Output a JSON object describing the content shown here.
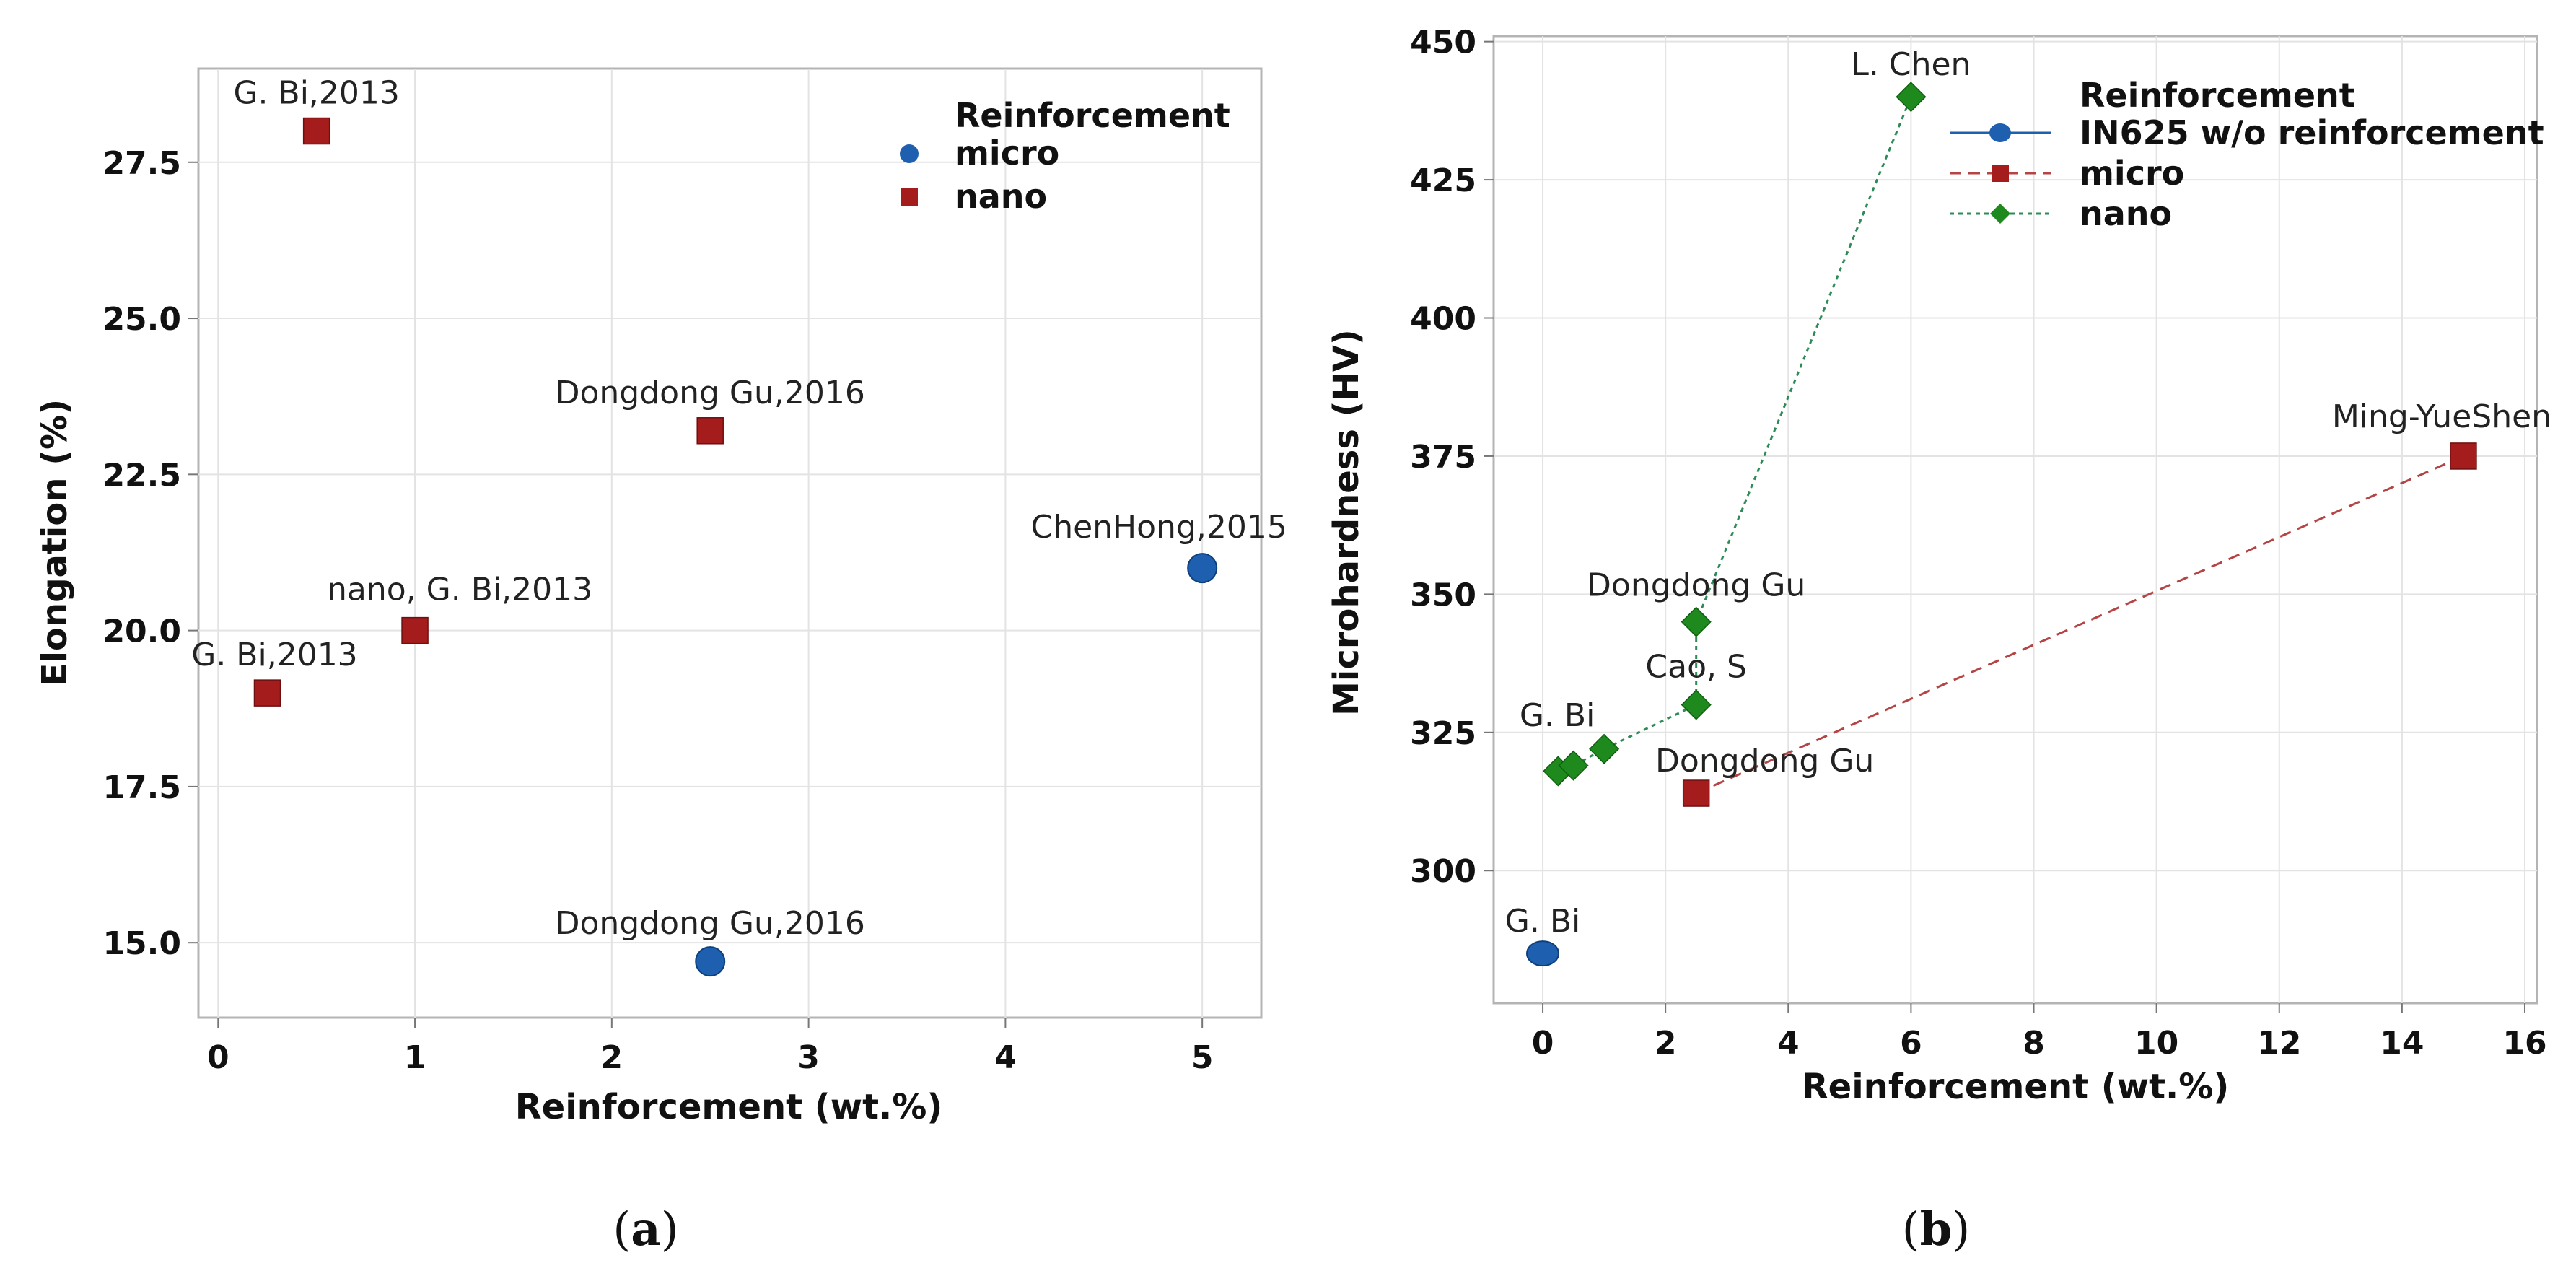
{
  "chart_data": [
    {
      "type": "scatter",
      "caption": "a",
      "xlabel": "Reinforcement (wt.%)",
      "ylabel": "Elongation (%)",
      "xlim": [
        -0.1,
        5.3
      ],
      "ylim": [
        13.8,
        29.0
      ],
      "xticks": [
        0,
        1,
        2,
        3,
        4,
        5
      ],
      "yticks": [
        15.0,
        17.5,
        20.0,
        22.5,
        25.0,
        27.5
      ],
      "ytick_labels": [
        "15.0",
        "17.5",
        "20.0",
        "22.5",
        "25.0",
        "27.5"
      ],
      "legend": {
        "title": "Reinforcement",
        "position": "top-right"
      },
      "series": [
        {
          "name": "micro",
          "marker": "circle",
          "color": "#1f5fb0",
          "points": [
            {
              "x": 2.5,
              "y": 14.7,
              "label": "Dongdong Gu,2016"
            },
            {
              "x": 5.0,
              "y": 21.0,
              "label": "ChenHong,2015"
            }
          ]
        },
        {
          "name": "nano",
          "marker": "square",
          "color": "#a51c1c",
          "points": [
            {
              "x": 0.5,
              "y": 28.0,
              "label": "G. Bi,2013"
            },
            {
              "x": 2.5,
              "y": 23.2,
              "label": "Dongdong Gu,2016"
            },
            {
              "x": 1.0,
              "y": 20.0,
              "label": "nano, G. Bi,2013"
            },
            {
              "x": 0.25,
              "y": 19.0,
              "label": "G. Bi,2013"
            }
          ]
        }
      ]
    },
    {
      "type": "line",
      "caption": "b",
      "xlabel": "Reinforcement (wt.%)",
      "ylabel": "Microhardness (HV)",
      "xlim": [
        -0.8,
        16.2
      ],
      "ylim": [
        276,
        451
      ],
      "xticks": [
        0,
        2,
        4,
        6,
        8,
        10,
        12,
        14,
        16
      ],
      "yticks": [
        300,
        325,
        350,
        375,
        400,
        425,
        450
      ],
      "ytick_labels": [
        "300",
        "325",
        "350",
        "375",
        "400",
        "425",
        "450"
      ],
      "legend": {
        "title": "Reinforcement",
        "position": "top-right"
      },
      "series": [
        {
          "name": "IN625 w/o reinforcement",
          "marker": "circle",
          "color": "#1f5fb0",
          "line": "solid",
          "points": [
            {
              "x": 0,
              "y": 285,
              "label": "G. Bi"
            }
          ]
        },
        {
          "name": "micro",
          "marker": "square",
          "color": "#a51c1c",
          "line": "dashed",
          "points": [
            {
              "x": 2.5,
              "y": 314,
              "label": "Dongdong Gu"
            },
            {
              "x": 15,
              "y": 375,
              "label": "Ming-YueShen"
            }
          ]
        },
        {
          "name": "nano",
          "marker": "diamond",
          "color": "#1e8a1e",
          "line": "dotted",
          "points": [
            {
              "x": 0.25,
              "y": 318,
              "label": ""
            },
            {
              "x": 0.5,
              "y": 319,
              "label": ""
            },
            {
              "x": 1.0,
              "y": 322,
              "label": "G. Bi"
            },
            {
              "x": 2.5,
              "y": 330,
              "label": "Cao, S"
            },
            {
              "x": 2.5,
              "y": 345,
              "label": "Dongdong Gu"
            },
            {
              "x": 6.0,
              "y": 440,
              "label": "L. Chen"
            }
          ]
        }
      ]
    }
  ],
  "captions": {
    "a": {
      "open": "(",
      "letter": "a",
      "close": ")"
    },
    "b": {
      "open": "(",
      "letter": "b",
      "close": ")"
    }
  }
}
